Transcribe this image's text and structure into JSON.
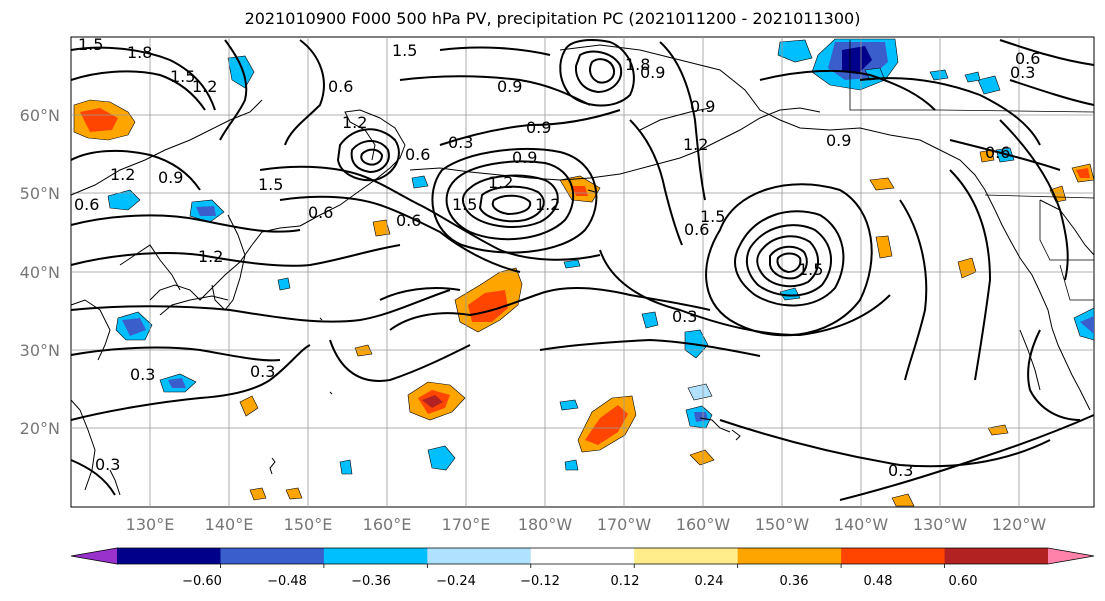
{
  "title": "2021010900 F000 500 hPa PV, precipitation PC (2021011200 - 2021011300)",
  "lat_labels": [
    "60°N",
    "50°N",
    "40°N",
    "30°N",
    "20°N"
  ],
  "lon_labels": [
    "130°E",
    "140°E",
    "150°E",
    "160°E",
    "170°E",
    "180°W",
    "170°W",
    "160°W",
    "150°W",
    "140°W",
    "130°W",
    "120°W"
  ],
  "contour_labels": [
    "1.5",
    "1.8",
    "1.5",
    "1.2",
    "1.5",
    "1.2",
    "0.6",
    "1.2",
    "0.9",
    "1.5",
    "1.2",
    "0.9",
    "1.5",
    "0.6",
    "0.6",
    "0.3",
    "0.9",
    "0.9",
    "1.2",
    "1.2",
    "0.6",
    "0.9",
    "1.5",
    "0.6",
    "1.5",
    "1.2",
    "0.9",
    "0.9",
    "0.3",
    "0.6",
    "0.6",
    "0.3",
    "0.3",
    "0.3",
    "0.3",
    "0.3",
    "0.6",
    "1.8"
  ],
  "colorbar": {
    "ticks": [
      "−0.60",
      "−0.48",
      "−0.36",
      "−0.24",
      "−0.12",
      "0.12",
      "0.24",
      "0.36",
      "0.48",
      "0.60"
    ],
    "colors": [
      "#9932cc",
      "#00008b",
      "#3a5fcd",
      "#00bfff",
      "#b0e2ff",
      "#ffffff",
      "#ffec8b",
      "#ffa500",
      "#ff4500",
      "#b22222",
      "#ff82ab"
    ]
  },
  "colors": {
    "land_line": "#000000",
    "contour": "#000000",
    "grid": "#999999",
    "axis_label": "#777777"
  }
}
